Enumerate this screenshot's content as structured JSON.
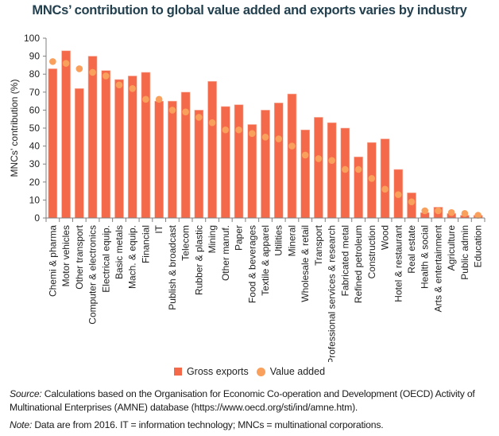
{
  "chart_data": {
    "type": "bar",
    "title": "MNCs’ contribution to global value added and exports varies by industry",
    "xlabel": "",
    "ylabel": "MNCs’ contribution (%)",
    "ylim": [
      0,
      100
    ],
    "yticks": [
      0,
      10,
      20,
      30,
      40,
      50,
      60,
      70,
      80,
      90,
      100
    ],
    "grid": false,
    "legend_placement": "bottom",
    "categories": [
      "Chemi & pharma",
      "Motor vehicles",
      "Other transport",
      "Computer & electronics",
      "Electrical equip.",
      "Basic metals",
      "Mach. & equip.",
      "Financial",
      "IT",
      "Publish & broadcast",
      "Telecom",
      "Rubber & plastic",
      "Mining",
      "Other manuf.",
      "Paper",
      "Food & beverages",
      "Textile & apparel",
      "Utilities",
      "Mineral",
      "Wholesale & retail",
      "Transport",
      "Professional services & research",
      "Fabricated metal",
      "Refined petroleum",
      "Construction",
      "Wood",
      "Hotel & restaurant",
      "Real estate",
      "Health & social",
      "Arts & entertainment",
      "Agriculture",
      "Public admin",
      "Education"
    ],
    "series": [
      {
        "name": "Gross exports",
        "kind": "bar",
        "color": "#f4694a",
        "values": [
          83,
          93,
          72,
          90,
          82,
          77,
          79,
          81,
          65,
          65,
          70,
          60,
          76,
          62,
          63,
          52,
          60,
          64,
          69,
          49,
          56,
          53,
          50,
          34,
          42,
          44,
          27,
          14,
          3,
          6,
          2.5,
          1.5,
          1.5
        ]
      },
      {
        "name": "Value added",
        "kind": "dot",
        "color": "#f9a05c",
        "values": [
          87,
          86,
          83,
          81,
          79,
          74,
          72,
          66,
          66,
          60,
          59,
          56,
          53,
          49,
          49,
          47,
          45,
          44,
          40,
          35,
          33,
          32,
          27,
          27,
          22,
          16,
          13,
          9,
          4,
          4,
          3,
          2.5,
          1.5
        ]
      }
    ]
  },
  "legend": [
    {
      "label": "Gross exports",
      "marker": "square",
      "color": "#f4694a"
    },
    {
      "label": "Value added",
      "marker": "circle",
      "color": "#f9a05c"
    }
  ],
  "notes": {
    "source_label": "Source:",
    "source_text": " Calculations based on the Organisation for Economic Co-operation and Development (OECD) Activity of Multinational Enterprises (AMNE) database (https://www.oecd.org/sti/ind/amne.htm).",
    "note_label": "Note:",
    "note_text": " Data are from 2016. IT = information technology; MNCs = multinational corporations."
  }
}
